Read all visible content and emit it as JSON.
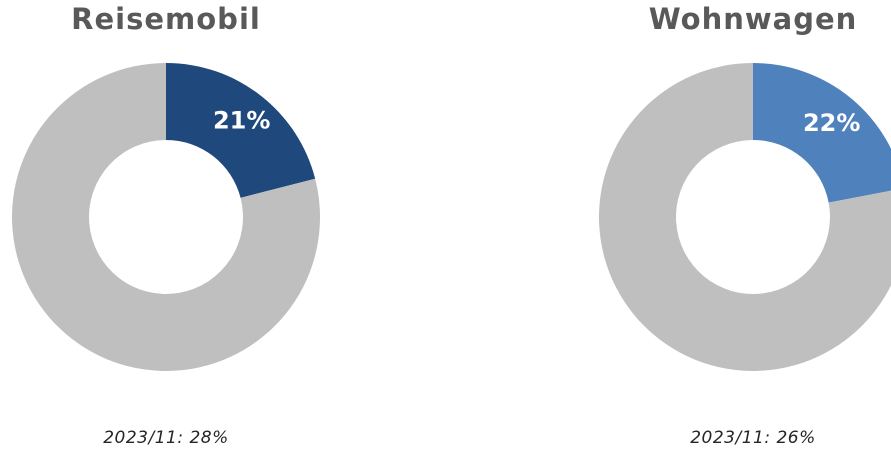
{
  "chart_data": [
    {
      "type": "pie",
      "title": "Reisemobil",
      "slices": [
        {
          "value": 21,
          "label": "21%",
          "color": "#1f497d"
        },
        {
          "value": 79,
          "label": "",
          "color": "#bfbfbf"
        }
      ],
      "note": "2023/11: 28%"
    },
    {
      "type": "pie",
      "title": "Wohnwagen",
      "slices": [
        {
          "value": 22,
          "label": "22%",
          "color": "#4f81bd"
        },
        {
          "value": 78,
          "label": "",
          "color": "#bfbfbf"
        }
      ],
      "note": "2023/11: 26%"
    }
  ]
}
